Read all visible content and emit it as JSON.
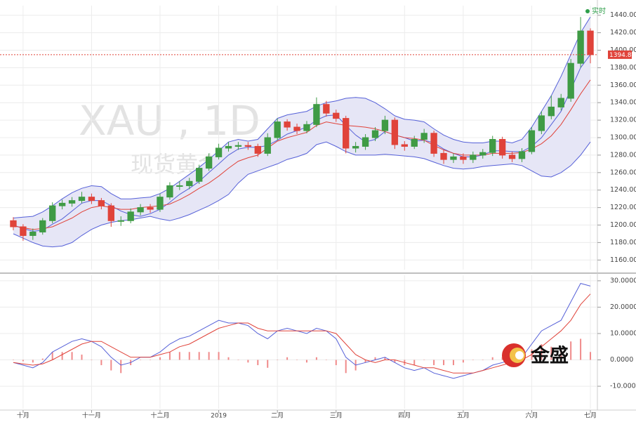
{
  "chart_data": [
    {
      "type": "candlestick",
      "watermark": "XAU , 1D",
      "watermark_sub": "现货黄金",
      "status": "实时",
      "categories": [
        null,
        "十月",
        null,
        null,
        null,
        null,
        null,
        null,
        "十一月",
        null,
        null,
        null,
        null,
        null,
        null,
        "十二月",
        null,
        null,
        null,
        null,
        null,
        "2019",
        null,
        null,
        null,
        null,
        null,
        "二月",
        null,
        null,
        null,
        null,
        null,
        "三月",
        null,
        null,
        null,
        null,
        null,
        null,
        "四月",
        null,
        null,
        null,
        null,
        null,
        "五月",
        null,
        null,
        null,
        null,
        null,
        null,
        "六月",
        null,
        null,
        null,
        null,
        null,
        "七月"
      ],
      "open": [
        1205,
        1198,
        1188,
        1192,
        1205,
        1222,
        1225,
        1228,
        1232,
        1228,
        1222,
        1205,
        1205,
        1215,
        1220,
        1218,
        1232,
        1245,
        1245,
        1250,
        1265,
        1278,
        1288,
        1290,
        1291,
        1290,
        1282,
        1300,
        1318,
        1312,
        1308,
        1315,
        1338,
        1328,
        1322,
        1288,
        1290,
        1300,
        1308,
        1320,
        1292,
        1290,
        1298,
        1305,
        1282,
        1275,
        1278,
        1275,
        1280,
        1283,
        1298,
        1280,
        1276,
        1284,
        1308,
        1325,
        1335,
        1345,
        1385,
        1422
      ],
      "high": [
        1209,
        1201,
        1196,
        1208,
        1226,
        1229,
        1232,
        1238,
        1236,
        1231,
        1225,
        1210,
        1219,
        1224,
        1224,
        1236,
        1249,
        1250,
        1254,
        1269,
        1282,
        1293,
        1295,
        1295,
        1295,
        1293,
        1305,
        1322,
        1321,
        1316,
        1319,
        1346,
        1342,
        1332,
        1325,
        1295,
        1304,
        1312,
        1325,
        1323,
        1296,
        1302,
        1310,
        1308,
        1286,
        1282,
        1282,
        1284,
        1287,
        1302,
        1301,
        1284,
        1288,
        1312,
        1330,
        1348,
        1350,
        1390,
        1438,
        1425
      ],
      "low": [
        1194,
        1182,
        1183,
        1189,
        1202,
        1218,
        1221,
        1225,
        1224,
        1218,
        1198,
        1199,
        1202,
        1211,
        1214,
        1215,
        1229,
        1240,
        1241,
        1247,
        1262,
        1275,
        1284,
        1286,
        1286,
        1278,
        1279,
        1297,
        1308,
        1304,
        1305,
        1312,
        1324,
        1318,
        1282,
        1283,
        1286,
        1296,
        1304,
        1287,
        1285,
        1287,
        1294,
        1278,
        1270,
        1271,
        1270,
        1271,
        1276,
        1279,
        1276,
        1272,
        1272,
        1281,
        1304,
        1321,
        1331,
        1341,
        1380,
        1385
      ],
      "close": [
        1198,
        1188,
        1192,
        1205,
        1222,
        1225,
        1228,
        1232,
        1228,
        1222,
        1205,
        1205,
        1215,
        1220,
        1218,
        1232,
        1245,
        1245,
        1250,
        1265,
        1278,
        1288,
        1290,
        1291,
        1290,
        1282,
        1300,
        1318,
        1312,
        1308,
        1315,
        1338,
        1328,
        1322,
        1288,
        1290,
        1300,
        1308,
        1320,
        1292,
        1290,
        1298,
        1305,
        1282,
        1275,
        1278,
        1275,
        1280,
        1283,
        1298,
        1280,
        1276,
        1284,
        1308,
        1325,
        1335,
        1345,
        1385,
        1422,
        1394.86
      ],
      "up_color": "#3f9b45",
      "down_color": "#e0433a",
      "bands": {
        "color": "#5560d8",
        "fill": "#e6e6f6",
        "upper": [
          1208,
          1209,
          1210,
          1215,
          1222,
          1230,
          1237,
          1242,
          1245,
          1244,
          1236,
          1230,
          1230,
          1231,
          1232,
          1236,
          1242,
          1250,
          1258,
          1266,
          1275,
          1285,
          1295,
          1298,
          1296,
          1298,
          1310,
          1322,
          1326,
          1328,
          1330,
          1336,
          1340,
          1342,
          1345,
          1346,
          1345,
          1340,
          1333,
          1325,
          1321,
          1320,
          1318,
          1310,
          1303,
          1298,
          1295,
          1294,
          1294,
          1296,
          1296,
          1294,
          1298,
          1312,
          1330,
          1348,
          1370,
          1395,
          1420,
          1438
        ],
        "lower": [
          1190,
          1185,
          1180,
          1176,
          1175,
          1176,
          1180,
          1188,
          1195,
          1200,
          1203,
          1205,
          1206,
          1208,
          1210,
          1207,
          1205,
          1208,
          1212,
          1217,
          1222,
          1228,
          1235,
          1248,
          1258,
          1262,
          1266,
          1270,
          1275,
          1278,
          1282,
          1292,
          1295,
          1290,
          1284,
          1280,
          1280,
          1280,
          1281,
          1280,
          1279,
          1278,
          1276,
          1272,
          1268,
          1265,
          1264,
          1265,
          1267,
          1268,
          1269,
          1270,
          1268,
          1262,
          1256,
          1255,
          1260,
          1268,
          1280,
          1295
        ]
      },
      "lines": [
        {
          "color": "#5560d8",
          "values": [
            1200,
            1196,
            1193,
            1194,
            1201,
            1207,
            1216,
            1225,
            1228,
            1228,
            1222,
            1216,
            1212,
            1210,
            1213,
            1218,
            1226,
            1235,
            1242,
            1250,
            1260,
            1270,
            1280,
            1287,
            1289,
            1289,
            1291,
            1297,
            1304,
            1308,
            1312,
            1320,
            1325,
            1326,
            1314,
            1303,
            1295,
            1298,
            1307,
            1303,
            1300,
            1296,
            1297,
            1294,
            1287,
            1282,
            1278,
            1278,
            1280,
            1285,
            1285,
            1284,
            1284,
            1290,
            1300,
            1315,
            1330,
            1355,
            1380,
            1395
          ]
        },
        {
          "color": "#e0433a",
          "values": [
            1199,
            1197,
            1195,
            1196,
            1198,
            1203,
            1208,
            1215,
            1220,
            1222,
            1220,
            1218,
            1218,
            1220,
            1221,
            1222,
            1224,
            1229,
            1235,
            1242,
            1248,
            1256,
            1265,
            1273,
            1277,
            1280,
            1288,
            1296,
            1300,
            1303,
            1306,
            1314,
            1318,
            1316,
            1314,
            1313,
            1312,
            1310,
            1307,
            1303,
            1300,
            1299,
            1297,
            1291,
            1286,
            1282,
            1280,
            1280,
            1280,
            1282,
            1282,
            1282,
            1283,
            1287,
            1293,
            1302,
            1315,
            1332,
            1350,
            1366
          ]
        }
      ],
      "last_price": 1394.86,
      "last_price_color": "#e0433a",
      "ylim": [
        1149,
        1451
      ],
      "yticks": [
        {
          "value": 1160,
          "label": "1160.00"
        },
        {
          "value": 1180,
          "label": "1180.00"
        },
        {
          "value": 1200,
          "label": "1200.00"
        },
        {
          "value": 1220,
          "label": "1220.00"
        },
        {
          "value": 1240,
          "label": "1240.00"
        },
        {
          "value": 1260,
          "label": "1260.00"
        },
        {
          "value": 1280,
          "label": "1280.00"
        },
        {
          "value": 1300,
          "label": "1300.00"
        },
        {
          "value": 1320,
          "label": "1320.00"
        },
        {
          "value": 1340,
          "label": "1340.00"
        },
        {
          "value": 1360,
          "label": "1360.00"
        },
        {
          "value": 1380,
          "label": "1380.00"
        },
        {
          "value": 1400,
          "label": "1400.00"
        },
        {
          "value": 1420,
          "label": "1420.00"
        },
        {
          "value": 1440,
          "label": "1440.00"
        }
      ],
      "grid": true
    },
    {
      "type": "macd",
      "series": [
        {
          "color": "#5560d8",
          "values": [
            -1,
            -2,
            -3,
            -1,
            3,
            5,
            7,
            8,
            7,
            5,
            1,
            -2,
            -1,
            1,
            1,
            3,
            6,
            8,
            9,
            11,
            13,
            15,
            14,
            14,
            13,
            10,
            8,
            11,
            12,
            11,
            10,
            12,
            11,
            8,
            1,
            -2,
            -1,
            0,
            1,
            -1,
            -3,
            -4,
            -3,
            -5,
            -6,
            -7,
            -6,
            -5,
            -4,
            -2,
            -1,
            0,
            1,
            6,
            11,
            13,
            15,
            22,
            29,
            28
          ]
        },
        {
          "color": "#e0433a",
          "values": [
            -1,
            -1.5,
            -2,
            -1.5,
            0,
            2,
            4,
            6,
            7,
            7,
            5,
            3,
            1,
            1,
            1,
            2,
            3,
            5,
            6,
            8,
            10,
            12,
            13,
            14,
            14,
            12,
            11,
            11,
            11,
            11,
            11,
            11,
            11,
            10,
            6,
            2,
            0,
            -1,
            0,
            0,
            -1,
            -2,
            -3,
            -3,
            -4,
            -5,
            -5,
            -5,
            -4,
            -3,
            -2,
            -1,
            0,
            2,
            5,
            8,
            11,
            15,
            21,
            25
          ]
        }
      ],
      "histogram": {
        "color": "#f08a8a",
        "values": [
          0,
          -0.5,
          -1,
          0.5,
          3,
          3,
          3,
          2,
          0,
          -2,
          -4,
          -5,
          -2,
          0,
          0,
          1,
          3,
          3,
          3,
          3,
          3,
          3,
          1,
          0,
          -1,
          -2,
          -3,
          0,
          1,
          0,
          -1,
          1,
          0,
          -2,
          -5,
          -4,
          -1,
          1,
          1,
          -1,
          -2,
          -2,
          0,
          -2,
          -2,
          -2,
          -1,
          0,
          0,
          1,
          1,
          1,
          1,
          4,
          6,
          5,
          4,
          7,
          8,
          3
        ]
      },
      "ylim": [
        -18.5,
        32.1
      ],
      "yticks": [
        {
          "value": 30,
          "label": "30.0000"
        },
        {
          "value": 20,
          "label": "20.0000"
        },
        {
          "value": 10,
          "label": "10.0000"
        },
        {
          "value": 0,
          "label": "0.0000"
        },
        {
          "value": -10,
          "label": "-10.0000"
        }
      ],
      "grid": true
    }
  ],
  "logo": "金盛"
}
